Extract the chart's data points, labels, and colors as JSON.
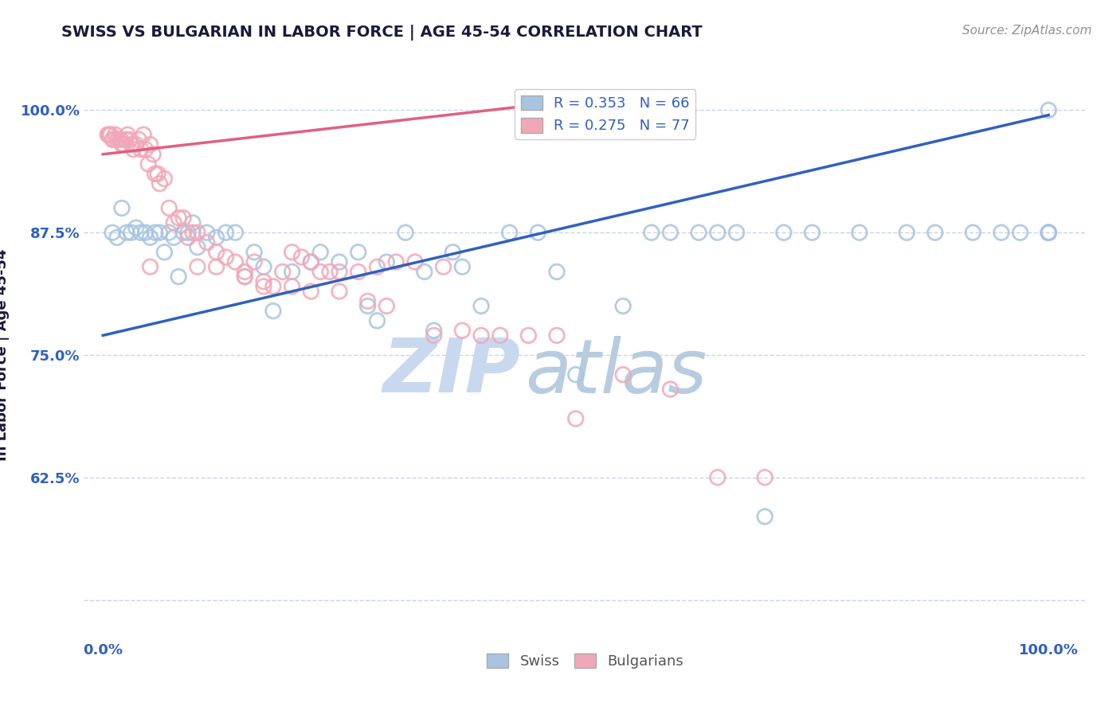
{
  "title": "SWISS VS BULGARIAN IN LABOR FORCE | AGE 45-54 CORRELATION CHART",
  "source_text": "Source: ZipAtlas.com",
  "ylabel": "In Labor Force | Age 45-54",
  "swiss_R": 0.353,
  "swiss_N": 66,
  "bulgarian_R": 0.275,
  "bulgarian_N": 77,
  "swiss_color": "#a8c4e0",
  "bulgarian_color": "#f0a8b8",
  "swiss_line_color": "#3060c0",
  "bulgarian_line_color": "#e06080",
  "tick_color": "#3060c0",
  "grid_color": "#c8d4e8",
  "background_color": "#ffffff",
  "title_color": "#1a1a3a",
  "watermark_zip": "ZIP",
  "watermark_atlas": "atlas",
  "watermark_color_zip": "#c8d8ee",
  "watermark_color_atlas": "#b8cce0",
  "xlim": [
    -2,
    104
  ],
  "ylim": [
    0.46,
    1.04
  ],
  "yticks": [
    0.5,
    0.625,
    0.75,
    0.875,
    1.0
  ],
  "yticklabels": [
    "",
    "62.5%",
    "75.0%",
    "87.5%",
    "100.0%"
  ],
  "swiss_x": [
    1.0,
    1.5,
    2.0,
    2.5,
    3.0,
    3.5,
    4.0,
    4.5,
    5.0,
    5.5,
    6.0,
    6.5,
    7.0,
    7.5,
    8.0,
    8.5,
    9.0,
    9.5,
    10.0,
    11.0,
    12.0,
    13.0,
    14.0,
    15.0,
    16.0,
    17.0,
    18.0,
    20.0,
    22.0,
    23.0,
    25.0,
    27.0,
    28.0,
    29.0,
    30.0,
    32.0,
    34.0,
    35.0,
    37.0,
    38.0,
    40.0,
    43.0,
    46.0,
    48.0,
    50.0,
    55.0,
    58.0,
    60.0,
    63.0,
    65.0,
    67.0,
    70.0,
    72.0,
    75.0,
    80.0,
    85.0,
    88.0,
    92.0,
    95.0,
    97.0,
    100.0,
    100.0,
    100.0,
    100.0,
    100.0,
    100.0
  ],
  "swiss_y": [
    0.875,
    0.87,
    0.9,
    0.875,
    0.875,
    0.88,
    0.875,
    0.875,
    0.87,
    0.875,
    0.875,
    0.855,
    0.875,
    0.87,
    0.83,
    0.875,
    0.875,
    0.885,
    0.86,
    0.875,
    0.87,
    0.875,
    0.875,
    0.83,
    0.855,
    0.84,
    0.795,
    0.835,
    0.845,
    0.855,
    0.845,
    0.855,
    0.8,
    0.785,
    0.845,
    0.875,
    0.835,
    0.775,
    0.855,
    0.84,
    0.8,
    0.875,
    0.875,
    0.835,
    0.73,
    0.8,
    0.875,
    0.875,
    0.875,
    0.875,
    0.875,
    0.585,
    0.875,
    0.875,
    0.875,
    0.875,
    0.875,
    0.875,
    0.875,
    0.875,
    0.875,
    0.875,
    0.875,
    0.875,
    0.875,
    1.0
  ],
  "bulgarian_x": [
    0.5,
    0.6,
    0.7,
    0.8,
    1.0,
    1.2,
    1.3,
    1.5,
    1.7,
    1.9,
    2.0,
    2.2,
    2.4,
    2.6,
    2.8,
    3.0,
    3.2,
    3.5,
    3.8,
    4.0,
    4.3,
    4.5,
    4.8,
    5.0,
    5.3,
    5.5,
    5.8,
    6.0,
    6.5,
    7.0,
    7.5,
    8.0,
    8.5,
    9.0,
    9.5,
    10.0,
    11.0,
    12.0,
    13.0,
    14.0,
    15.0,
    16.0,
    17.0,
    18.0,
    19.0,
    20.0,
    21.0,
    22.0,
    23.0,
    24.0,
    25.0,
    27.0,
    29.0,
    31.0,
    33.0,
    36.0,
    5.0,
    10.0,
    12.0,
    15.0,
    17.0,
    20.0,
    22.0,
    25.0,
    28.0,
    30.0,
    35.0,
    38.0,
    40.0,
    42.0,
    45.0,
    48.0,
    50.0,
    55.0,
    60.0,
    65.0,
    70.0
  ],
  "bulgarian_y": [
    0.975,
    0.975,
    0.975,
    0.975,
    0.97,
    0.97,
    0.975,
    0.97,
    0.97,
    0.97,
    0.965,
    0.965,
    0.97,
    0.975,
    0.97,
    0.965,
    0.96,
    0.965,
    0.97,
    0.96,
    0.975,
    0.96,
    0.945,
    0.965,
    0.955,
    0.935,
    0.935,
    0.925,
    0.93,
    0.9,
    0.885,
    0.89,
    0.89,
    0.87,
    0.875,
    0.875,
    0.865,
    0.855,
    0.85,
    0.845,
    0.835,
    0.845,
    0.825,
    0.82,
    0.835,
    0.855,
    0.85,
    0.845,
    0.835,
    0.835,
    0.835,
    0.835,
    0.84,
    0.845,
    0.845,
    0.84,
    0.84,
    0.84,
    0.84,
    0.83,
    0.82,
    0.82,
    0.815,
    0.815,
    0.805,
    0.8,
    0.77,
    0.775,
    0.77,
    0.77,
    0.77,
    0.77,
    0.685,
    0.73,
    0.715,
    0.625,
    0.625
  ],
  "swiss_line_x": [
    0,
    100
  ],
  "swiss_line_y": [
    0.77,
    0.995
  ],
  "bulgarian_line_x": [
    0,
    50
  ],
  "bulgarian_line_y": [
    0.955,
    1.01
  ]
}
